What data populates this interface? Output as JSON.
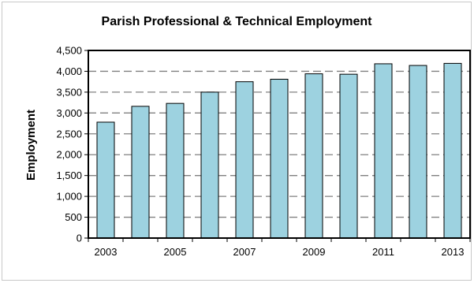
{
  "chart_data": {
    "type": "bar",
    "title": "Parish Professional & Technical Employment",
    "xlabel": "",
    "ylabel": "Employment",
    "categories": [
      "2003",
      "2004",
      "2005",
      "2006",
      "2007",
      "2008",
      "2009",
      "2010",
      "2011",
      "2012",
      "2013"
    ],
    "x_tick_labels": [
      "2003",
      "",
      "2005",
      "",
      "2007",
      "",
      "2009",
      "",
      "2011",
      "",
      "2013"
    ],
    "values": [
      2780,
      3160,
      3230,
      3500,
      3750,
      3810,
      3940,
      3930,
      4180,
      4140,
      4190
    ],
    "ylim": [
      0,
      4500
    ],
    "y_ticks": [
      0,
      500,
      1000,
      1500,
      2000,
      2500,
      3000,
      3500,
      4000,
      4500
    ],
    "y_tick_labels": [
      "0",
      "500",
      "1,000",
      "1,500",
      "2,000",
      "2,500",
      "3,000",
      "3,500",
      "4,000",
      "4,500"
    ],
    "grid": true,
    "legend": "none",
    "colors": {
      "bar_fill": "#9dd2e0",
      "bar_stroke": "#000000",
      "grid": "#808080",
      "axis": "#000000"
    }
  }
}
